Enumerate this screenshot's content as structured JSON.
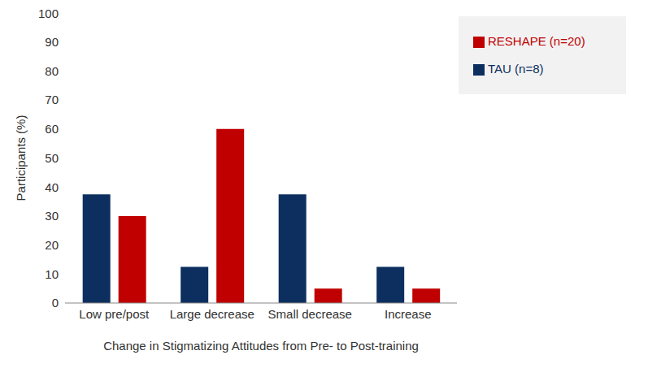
{
  "chart_data": {
    "type": "bar",
    "categories": [
      "Low pre/post",
      "Large decrease",
      "Small decrease",
      "Increase"
    ],
    "series": [
      {
        "name": "TAU (n=8)",
        "color": "#0c2f5f",
        "values": [
          37.5,
          12.5,
          37.5,
          12.5
        ]
      },
      {
        "name": "RESHAPE (n=20)",
        "color": "#c00000",
        "values": [
          30,
          60,
          5,
          5
        ]
      }
    ],
    "x_label": "Change in Stigmatizing Attitudes from Pre- to Post-training",
    "y_label": "Participants (%)",
    "ylim": [
      0,
      100
    ],
    "yticks": [
      0,
      10,
      20,
      30,
      40,
      50,
      60,
      70,
      80,
      90,
      100
    ],
    "grid": false,
    "legend": "upper right"
  }
}
